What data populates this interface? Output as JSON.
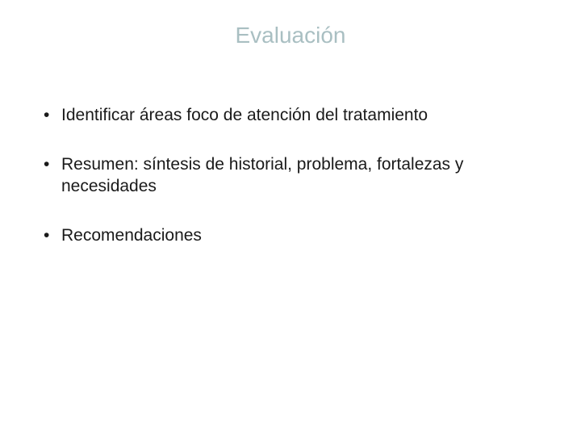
{
  "slide": {
    "title": "Evaluación",
    "title_color": "#a9bfc2",
    "title_fontsize": 28,
    "background_color": "#ffffff",
    "body_fontsize": 21,
    "body_color": "#1a1a1a",
    "bullets": [
      "Identificar áreas foco de atención del tratamiento",
      "Resumen: síntesis de historial, problema, fortalezas y necesidades",
      "Recomendaciones"
    ]
  }
}
